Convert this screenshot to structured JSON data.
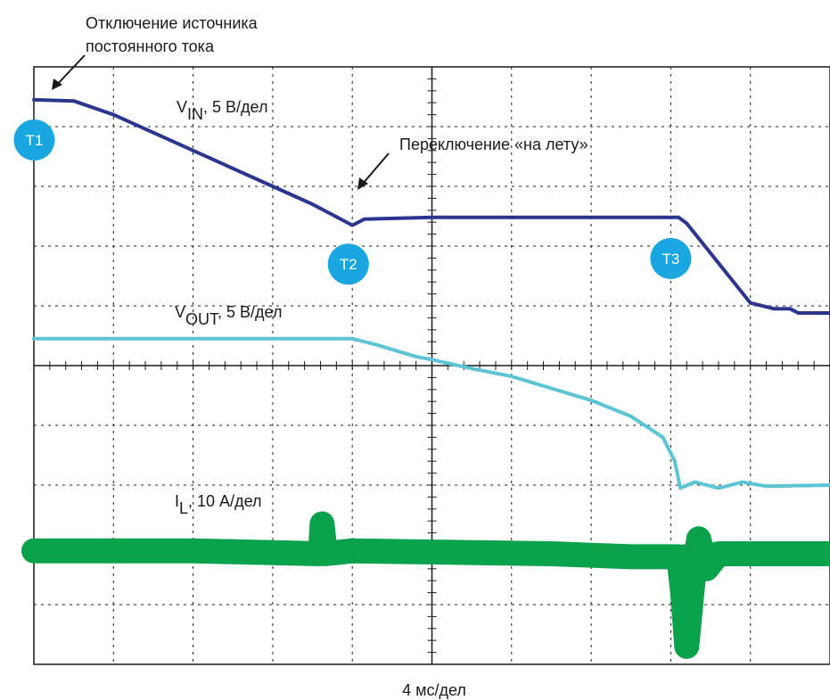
{
  "chart_data": {
    "type": "line",
    "xlabel": "4 мс/дел",
    "grid": true,
    "divisions": {
      "x": 10,
      "y": 10
    },
    "series": [
      {
        "name": "VIN",
        "label": {
          "main": "V",
          "sub": "IN",
          "suffix": ", 5 В/дел"
        },
        "color": "#2b3590",
        "points": [
          [
            0,
            9.45
          ],
          [
            0.5,
            9.43
          ],
          [
            1.0,
            9.2
          ],
          [
            2.0,
            8.6
          ],
          [
            3.0,
            8.0
          ],
          [
            3.5,
            7.7
          ],
          [
            4.0,
            7.35
          ],
          [
            4.15,
            7.45
          ],
          [
            5.0,
            7.48
          ],
          [
            7.0,
            7.48
          ],
          [
            8.1,
            7.48
          ],
          [
            8.2,
            7.38
          ],
          [
            9.0,
            6.05
          ],
          [
            9.3,
            5.95
          ],
          [
            9.5,
            5.95
          ],
          [
            9.6,
            5.88
          ],
          [
            10.0,
            5.88
          ]
        ]
      },
      {
        "name": "VOUT",
        "label": {
          "main": "V",
          "sub": "OUT",
          "suffix": ", 5 В/дел"
        },
        "color": "#5bc5d3",
        "points": [
          [
            0,
            5.45
          ],
          [
            4.0,
            5.45
          ],
          [
            4.3,
            5.35
          ],
          [
            4.8,
            5.15
          ],
          [
            5.0,
            5.1
          ],
          [
            5.5,
            4.95
          ],
          [
            6.0,
            4.82
          ],
          [
            6.5,
            4.62
          ],
          [
            7.0,
            4.42
          ],
          [
            7.5,
            4.15
          ],
          [
            7.9,
            3.8
          ],
          [
            8.05,
            3.4
          ],
          [
            8.12,
            2.95
          ],
          [
            8.3,
            3.05
          ],
          [
            8.6,
            2.95
          ],
          [
            8.9,
            3.05
          ],
          [
            9.2,
            2.98
          ],
          [
            10.0,
            3.0
          ]
        ]
      },
      {
        "name": "IL",
        "label": {
          "main": "I",
          "sub": "L",
          "suffix": ", 10 А/дел"
        },
        "color": "#0aa14b",
        "points": [
          [
            0,
            1.9
          ],
          [
            2.0,
            1.9
          ],
          [
            3.6,
            1.85
          ],
          [
            3.62,
            2.35
          ],
          [
            3.66,
            1.85
          ],
          [
            4.0,
            1.9
          ],
          [
            6.5,
            1.85
          ],
          [
            7.5,
            1.8
          ],
          [
            8.1,
            1.8
          ],
          [
            8.15,
            1.2
          ],
          [
            8.2,
            0.3
          ],
          [
            8.28,
            1.4
          ],
          [
            8.35,
            2.1
          ],
          [
            8.45,
            1.6
          ],
          [
            8.6,
            1.85
          ],
          [
            10.0,
            1.85
          ]
        ]
      }
    ],
    "markers": [
      {
        "label": "T1",
        "t": 0.05
      },
      {
        "label": "T2",
        "t": 3.95
      },
      {
        "label": "T3",
        "t": 8.0
      }
    ],
    "annotations": [
      {
        "lines": [
          "Отключение источника",
          "постоянного тока"
        ]
      },
      {
        "lines": [
          "Переключение «на лету»"
        ]
      }
    ]
  }
}
